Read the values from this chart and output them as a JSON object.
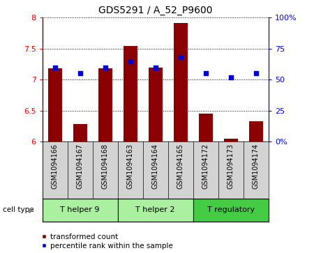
{
  "title": "GDS5291 / A_52_P9600",
  "samples": [
    "GSM1094166",
    "GSM1094167",
    "GSM1094168",
    "GSM1094163",
    "GSM1094164",
    "GSM1094165",
    "GSM1094172",
    "GSM1094173",
    "GSM1094174"
  ],
  "transformed_counts": [
    7.18,
    6.28,
    7.18,
    7.54,
    7.2,
    7.92,
    6.45,
    6.05,
    6.33
  ],
  "percentile_ranks": [
    60,
    55,
    60,
    65,
    60,
    68,
    55,
    52,
    55
  ],
  "cell_types": [
    {
      "label": "T helper 9",
      "start": 0,
      "end": 3
    },
    {
      "label": "T helper 2",
      "start": 3,
      "end": 6
    },
    {
      "label": "T regulatory",
      "start": 6,
      "end": 9
    }
  ],
  "cell_type_colors": [
    "#aaf0a0",
    "#aaf0a0",
    "#44cc44"
  ],
  "ylim_left": [
    6,
    8
  ],
  "ylim_right": [
    0,
    100
  ],
  "yticks_left": [
    6,
    6.5,
    7,
    7.5,
    8
  ],
  "yticks_right": [
    0,
    25,
    50,
    75,
    100
  ],
  "ytick_labels_right": [
    "0%",
    "25",
    "50",
    "75",
    "100%"
  ],
  "bar_color": "#8B0000",
  "dot_color": "#0000CD",
  "bar_width": 0.55,
  "legend_items": [
    "transformed count",
    "percentile rank within the sample"
  ],
  "background_color": "#ffffff",
  "tick_area_bg": "#d3d3d3",
  "gridstyle": "dotted"
}
